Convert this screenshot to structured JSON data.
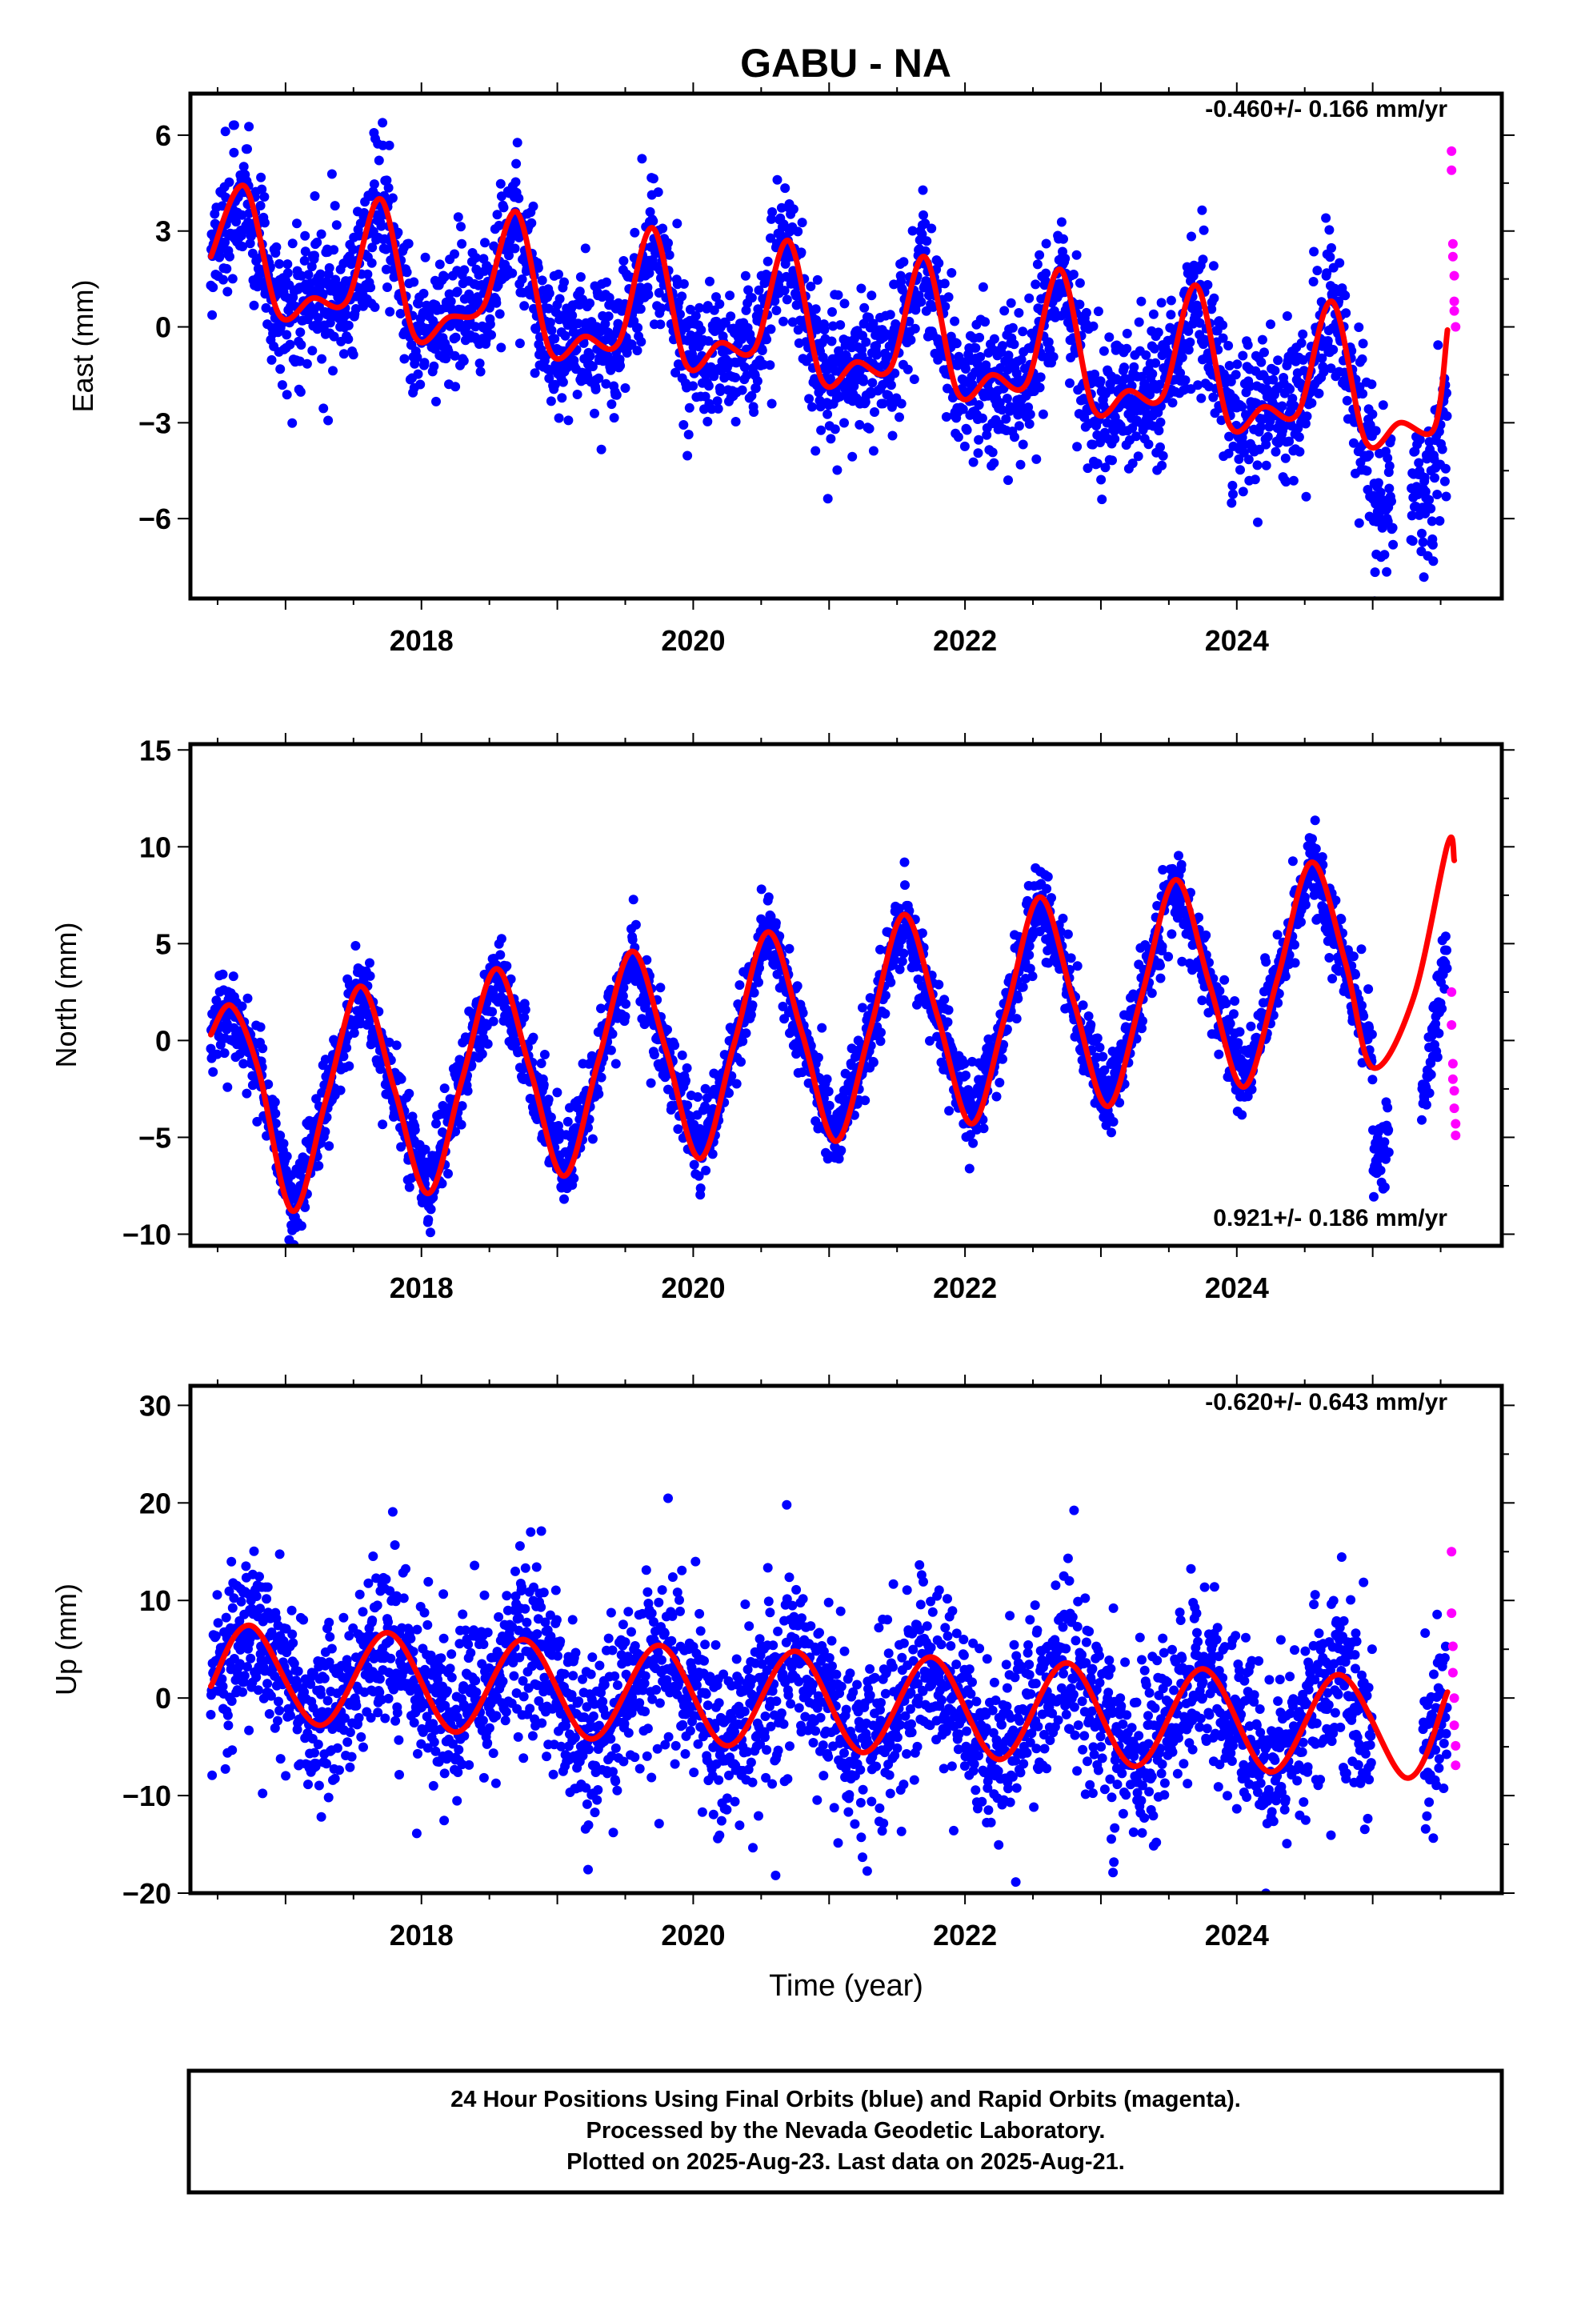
{
  "title": "GABU - NA",
  "caption": {
    "line1": "24 Hour Positions Using Final Orbits (blue) and Rapid Orbits (magenta).",
    "line2": "Processed by the Nevada Geodetic Laboratory.",
    "line3": "Plotted on 2025-Aug-23. Last data on 2025-Aug-21."
  },
  "colors": {
    "final": "#0000ff",
    "rapid": "#ff00ff",
    "model": "#ff0000",
    "frame": "#000000"
  },
  "chart_data": [
    {
      "type": "scatter",
      "ylabel": "East (mm)",
      "xlim": [
        2016.3,
        2025.95
      ],
      "ylim": [
        -8.5,
        7.3
      ],
      "x_ticks": [
        2018,
        2020,
        2022,
        2024
      ],
      "x_tick_labels": [
        "2018",
        "2020",
        "2022",
        "2024"
      ],
      "y_ticks": [
        -6,
        -3,
        0,
        3,
        6
      ],
      "y_tick_labels": [
        "−6",
        "−3",
        "0",
        "3",
        "6"
      ],
      "rate_text": "-0.460+/- 0.166 mm/yr",
      "rate_position": "top-right",
      "model": {
        "name": "model",
        "x": [
          2016.45,
          2016.7,
          2016.95,
          2017.2,
          2017.45,
          2017.7,
          2017.95,
          2018.2,
          2018.45,
          2018.7,
          2018.95,
          2019.2,
          2019.45,
          2019.7,
          2019.95,
          2020.2,
          2020.45,
          2020.7,
          2020.95,
          2021.2,
          2021.45,
          2021.7,
          2021.95,
          2022.2,
          2022.45,
          2022.7,
          2022.95,
          2023.2,
          2023.45,
          2023.7,
          2023.95,
          2024.2,
          2024.45,
          2024.7,
          2024.95,
          2025.2,
          2025.45,
          2025.55
        ],
        "y": [
          2.2,
          4.4,
          0.4,
          0.9,
          0.8,
          4.0,
          -0.3,
          0.3,
          0.6,
          3.6,
          -0.8,
          -0.3,
          -0.5,
          3.1,
          -1.2,
          -0.5,
          -0.7,
          2.7,
          -1.7,
          -1.1,
          -1.3,
          2.2,
          -2.1,
          -1.5,
          -1.8,
          1.8,
          -2.6,
          -2.0,
          -2.2,
          1.3,
          -3.1,
          -2.5,
          -2.7,
          0.8,
          -3.6,
          -3.0,
          -3.2,
          -0.1
        ]
      },
      "series": [
        {
          "name": "final",
          "x_range": [
            2016.45,
            2025.55
          ],
          "trend_mm_per_yr": -0.46,
          "scatter_sd": 1.1
        },
        {
          "name": "rapid",
          "x": [
            2025.58,
            2025.58,
            2025.59,
            2025.59,
            2025.6,
            2025.6,
            2025.6,
            2025.61
          ],
          "y": [
            5.5,
            4.9,
            2.6,
            2.2,
            1.6,
            0.8,
            0.5,
            0.0
          ]
        }
      ]
    },
    {
      "type": "scatter",
      "ylabel": "North (mm)",
      "xlim": [
        2016.3,
        2025.95
      ],
      "ylim": [
        -10.6,
        15.3
      ],
      "x_ticks": [
        2018,
        2020,
        2022,
        2024
      ],
      "x_tick_labels": [
        "2018",
        "2020",
        "2022",
        "2024"
      ],
      "y_ticks": [
        -10,
        -5,
        0,
        5,
        10,
        15
      ],
      "y_tick_labels": [
        "−10",
        "−5",
        "0",
        "5",
        "10",
        "15"
      ],
      "rate_text": "0.921+/- 0.186 mm/yr",
      "rate_position": "bottom-right",
      "model": {
        "name": "model",
        "x": [
          2016.45,
          2016.6,
          2016.8,
          2017.05,
          2017.3,
          2017.55,
          2017.8,
          2018.05,
          2018.3,
          2018.55,
          2018.8,
          2019.05,
          2019.3,
          2019.55,
          2019.8,
          2020.05,
          2020.3,
          2020.55,
          2020.8,
          2021.05,
          2021.3,
          2021.55,
          2021.8,
          2022.05,
          2022.3,
          2022.55,
          2022.8,
          2023.05,
          2023.3,
          2023.55,
          2023.8,
          2024.05,
          2024.3,
          2024.55,
          2024.8,
          2025.0,
          2025.3,
          2025.55,
          2025.6
        ],
        "y": [
          0.3,
          1.8,
          -1.5,
          -8.8,
          -3.0,
          2.8,
          -2.5,
          -7.9,
          -2.0,
          3.7,
          -1.5,
          -7.0,
          -1.1,
          4.6,
          -0.5,
          -6.1,
          -0.2,
          5.6,
          0.4,
          -5.2,
          0.5,
          6.5,
          1.2,
          -4.3,
          1.4,
          7.4,
          2.0,
          -3.4,
          2.3,
          8.3,
          2.9,
          -2.4,
          3.2,
          9.2,
          4.0,
          -1.4,
          2.2,
          10.1,
          9.3
        ]
      },
      "series": [
        {
          "name": "final",
          "x_range": [
            2016.45,
            2025.55
          ],
          "trend_mm_per_yr": 0.921,
          "scatter_sd": 1.0
        },
        {
          "name": "rapid",
          "x": [
            2025.58,
            2025.58,
            2025.59,
            2025.59,
            2025.6,
            2025.6,
            2025.61,
            2025.61
          ],
          "y": [
            2.5,
            0.8,
            -1.2,
            -2.0,
            -2.6,
            -3.5,
            -4.3,
            -4.9
          ]
        }
      ]
    },
    {
      "type": "scatter",
      "ylabel": "Up (mm)",
      "xlim": [
        2016.3,
        2025.95
      ],
      "ylim": [
        -20,
        32
      ],
      "x_ticks": [
        2018,
        2020,
        2022,
        2024
      ],
      "x_tick_labels": [
        "2018",
        "2020",
        "2022",
        "2024"
      ],
      "y_ticks": [
        -20,
        -10,
        0,
        10,
        20,
        30
      ],
      "y_tick_labels": [
        "−20",
        "−10",
        "0",
        "10",
        "20",
        "30"
      ],
      "xlabel": "Time (year)",
      "rate_text": "-0.620+/- 0.643 mm/yr",
      "rate_position": "top-right",
      "model": {
        "name": "model",
        "x": [
          2016.45,
          2016.75,
          2017.25,
          2017.75,
          2018.25,
          2018.75,
          2019.25,
          2019.75,
          2020.25,
          2020.75,
          2021.25,
          2021.75,
          2022.25,
          2022.75,
          2023.25,
          2023.75,
          2024.25,
          2024.75,
          2025.25,
          2025.55
        ],
        "y": [
          1.2,
          7.4,
          -2.8,
          6.7,
          -3.5,
          6.0,
          -4.2,
          5.4,
          -4.9,
          4.8,
          -5.6,
          4.2,
          -6.3,
          3.6,
          -7.0,
          3.0,
          -7.6,
          2.4,
          -8.2,
          0.6
        ]
      },
      "series": [
        {
          "name": "final",
          "x_range": [
            2016.45,
            2025.55
          ],
          "trend_mm_per_yr": -0.62,
          "scatter_sd": 4.5
        },
        {
          "name": "rapid",
          "x": [
            2025.58,
            2025.58,
            2025.59,
            2025.59,
            2025.6,
            2025.6,
            2025.61,
            2025.61
          ],
          "y": [
            15.0,
            8.7,
            5.3,
            2.6,
            0.0,
            -2.8,
            -4.9,
            -6.9
          ]
        }
      ]
    }
  ]
}
